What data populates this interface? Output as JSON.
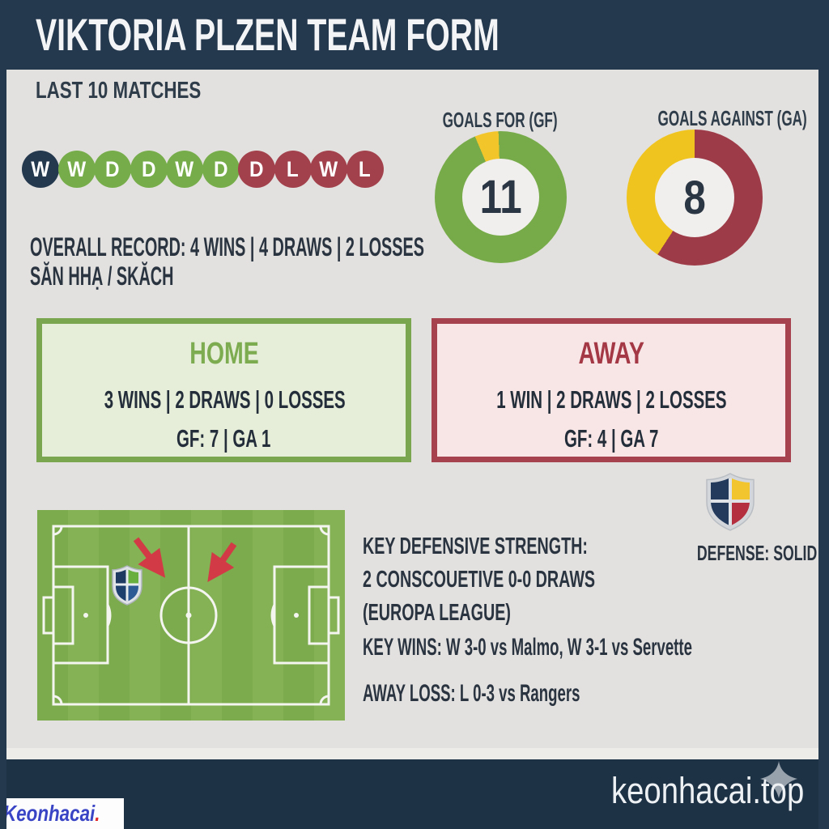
{
  "header": {
    "title": "VIKTORIA PLZEN TEAM FORM"
  },
  "overview": {
    "subtitle": "LAST 10 MATCHES",
    "record_line": "OVERALL RECORD: 4 WINS | 4 DRAWS | 2 LOSSES",
    "record_subline": "SĂN HHẠ / SKĂCH"
  },
  "form": {
    "results": [
      {
        "letter": "W",
        "color": "#24384e"
      },
      {
        "letter": "W",
        "color": "#76ad4a"
      },
      {
        "letter": "D",
        "color": "#76ad4a"
      },
      {
        "letter": "D",
        "color": "#76ad4a"
      },
      {
        "letter": "W",
        "color": "#76ad4a"
      },
      {
        "letter": "D",
        "color": "#76ad4a"
      },
      {
        "letter": "D",
        "color": "#a2414c"
      },
      {
        "letter": "L",
        "color": "#a2414c"
      },
      {
        "letter": "W",
        "color": "#a2414c"
      },
      {
        "letter": "L",
        "color": "#a2414c"
      }
    ]
  },
  "home_box": {
    "title": "HOME",
    "record": "3 WINS | 2 DRAWS | 0 LOSSES",
    "goals": "GF: 7 | GA 1"
  },
  "away_box": {
    "title": "AWAY",
    "record": "1 WIN | 2 DRAWS | 2 LOSSES",
    "goals": "GF: 4 | GA 7"
  },
  "defense": {
    "line1": "KEY DEFENSIVE STRENGTH:",
    "line2": "2 CONSCOUETIVE 0-0 DRAWS",
    "line3": "(EUROPA LEAGUE)",
    "badge_label": "DEFENSE: SOLID"
  },
  "notes": {
    "key_wins": "KEY WINS: W 3-0 vs Malmo, W 3-1 vs Servette",
    "away_loss": "AWAY LOSS: L 0-3 vs Rangers"
  },
  "footer": {
    "watermark": "keonhacai.top",
    "logo_text": "Keonhacai",
    "logo_dot": "."
  },
  "palette": {
    "navy": "#24384e",
    "footer_navy": "#1e3246",
    "background": "#e3e1df",
    "win_green": "#76ad4a",
    "loss_red": "#a2414c",
    "accent_yellow": "#f2c52b",
    "home_bg": "#e6edd9",
    "away_bg": "#f8e6e6",
    "arrow_red": "#d23b45",
    "text_dark": "#2a3441"
  },
  "chart_data": [
    {
      "type": "pie",
      "variant": "donut",
      "title": "GOALS FOR (GF)",
      "value": 11,
      "center_label": "11",
      "rotate_deg": 337,
      "slices": [
        {
          "name": "accent-highlight",
          "color": "#f2c52b",
          "start_deg": 0,
          "end_deg": 21,
          "pct": 6
        },
        {
          "name": "goals-for",
          "color": "#77ab4a",
          "start_deg": 21,
          "end_deg": 360,
          "pct": 94
        }
      ],
      "legend": "none",
      "center_hole": true
    },
    {
      "type": "pie",
      "variant": "donut",
      "title": "GOALS AGAINST (GA)",
      "value": 8,
      "center_label": "8",
      "rotate_deg": 0,
      "slices": [
        {
          "name": "goals-against",
          "color": "#9e3b48",
          "start_deg": 0,
          "end_deg": 213,
          "pct": 59
        },
        {
          "name": "accent-highlight",
          "color": "#f0c41e",
          "start_deg": 213,
          "end_deg": 360,
          "pct": 41
        }
      ],
      "legend": "none",
      "center_hole": true
    }
  ]
}
